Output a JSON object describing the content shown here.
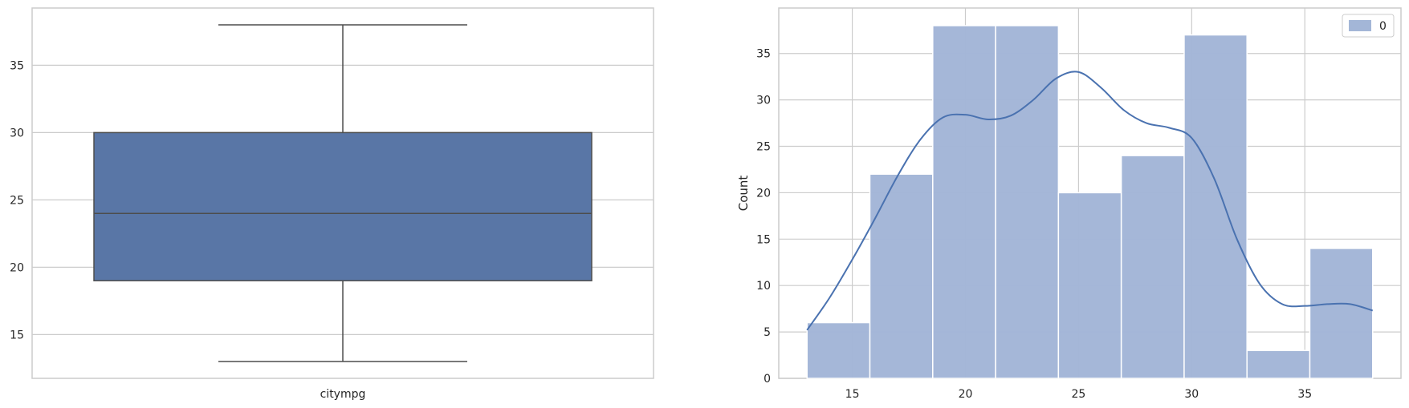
{
  "chart_data": [
    {
      "type": "box",
      "categories": [
        "citympg"
      ],
      "stats": {
        "min": 13,
        "q1": 19,
        "median": 24,
        "q3": 30,
        "max": 38
      },
      "ylim": [
        11.75,
        39.25
      ],
      "yticks": [
        15,
        20,
        25,
        30,
        35
      ],
      "grid": true,
      "colors": {
        "box": "#5976a6",
        "line": "#4d4d4d",
        "grid": "#cccccc"
      }
    },
    {
      "type": "bar",
      "subtype": "histogram",
      "bin_edges": [
        13,
        15.7778,
        18.5556,
        21.3333,
        24.1111,
        26.8889,
        29.6667,
        32.4444,
        35.2222,
        38
      ],
      "values": [
        6,
        22,
        38,
        38,
        20,
        24,
        37,
        3,
        14
      ],
      "xlim": [
        11.75,
        39.25
      ],
      "ylim": [
        0,
        39.9
      ],
      "xticks": [
        15,
        20,
        25,
        30,
        35
      ],
      "yticks": [
        0,
        5,
        10,
        15,
        20,
        25,
        30,
        35
      ],
      "ylabel": "Count",
      "legend": {
        "position": "top-right",
        "entries": [
          "0"
        ]
      },
      "kde": {
        "x": [
          13,
          14,
          15,
          16,
          17,
          18,
          19,
          20,
          21,
          22,
          23,
          24,
          25,
          26,
          27,
          28,
          29,
          30,
          31,
          32,
          33,
          34,
          35,
          36,
          37,
          38
        ],
        "y": [
          5.2,
          8.7,
          12.8,
          17.2,
          21.8,
          25.7,
          28.1,
          28.4,
          27.9,
          28.3,
          30.0,
          32.3,
          33.0,
          31.3,
          28.9,
          27.5,
          27.0,
          25.9,
          21.5,
          15.0,
          10.2,
          8.0,
          7.8,
          8.0,
          8.0,
          7.3
        ]
      },
      "grid": true,
      "colors": {
        "bar": "#a3b6d7",
        "line": "#4a72b0",
        "grid": "#cccccc"
      }
    }
  ]
}
